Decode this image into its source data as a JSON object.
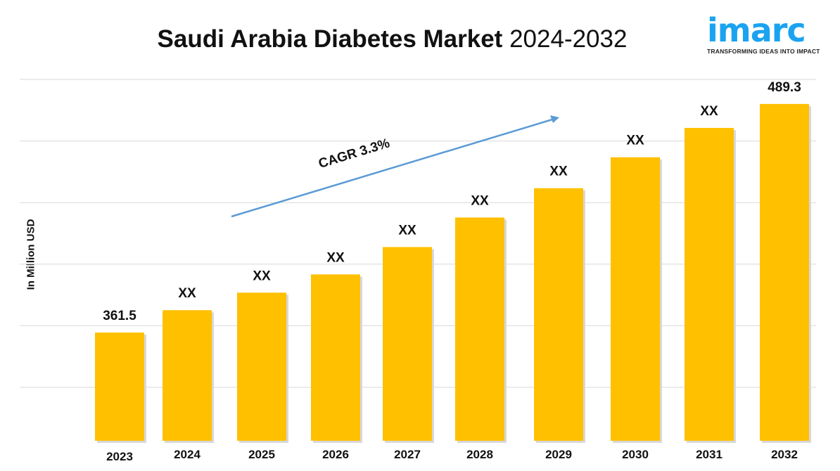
{
  "logo": {
    "word": "imarc",
    "tagline": "TRANSFORMING IDEAS INTO IMPACT",
    "color": "#1aa3f0"
  },
  "chart_data": {
    "type": "bar",
    "title_bold": "Saudi Arabia Diabetes Market",
    "title_years": "2024-2032",
    "ylabel": "In Million USD",
    "categories": [
      "2023",
      "2024",
      "2025",
      "2026",
      "2027",
      "2028",
      "2029",
      "2030",
      "2031",
      "2032"
    ],
    "values": [
      361.5,
      374.0,
      383.8,
      394.0,
      409.3,
      425.8,
      442.2,
      459.5,
      475.9,
      489.3
    ],
    "data_labels": [
      "361.5",
      "XX",
      "XX",
      "XX",
      "XX",
      "XX",
      "XX",
      "XX",
      "XX",
      "489.3"
    ],
    "ylim": [
      301,
      503
    ],
    "grid": true,
    "bar_color": "#ffc000",
    "annotation": {
      "text": "CAGR 3.3%",
      "arrow_color": "#5b9bd5"
    }
  }
}
